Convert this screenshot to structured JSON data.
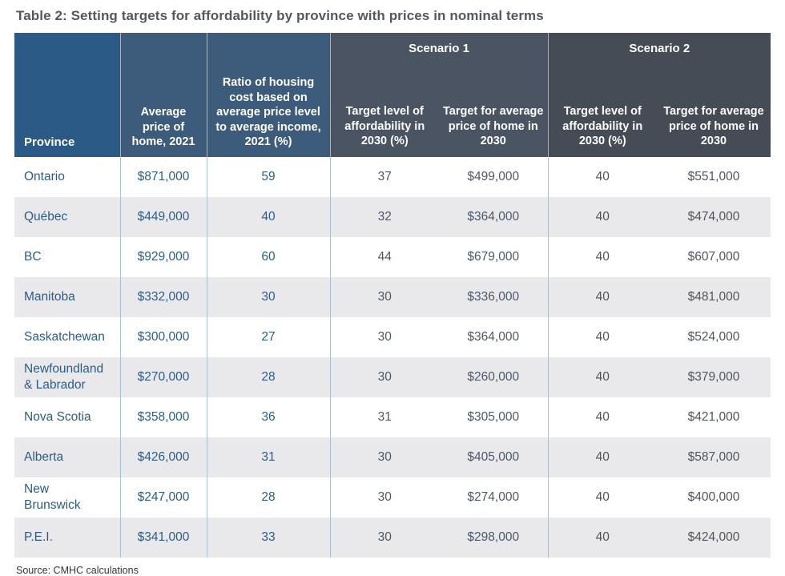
{
  "title": "Table 2: Setting targets for affordability by province with prices in nominal terms",
  "source": "Source: CMHC calculations",
  "colors": {
    "province_header_bg": "#2c5a86",
    "blue_headers_bg": "#3d5b7b",
    "scenario1_header_bg": "#4a5463",
    "scenario2_header_bg": "#464c55",
    "stripe_row_bg": "#e9e9eb",
    "blue_text": "#2d5c87",
    "scenario1_text": "#4d5868",
    "scenario2_text": "#50545d",
    "divider_blue": "#a6c0d5",
    "title_text": "#54575e"
  },
  "table": {
    "headers": {
      "province": "Province",
      "avg_price": "Average price of home, 2021",
      "ratio": "Ratio of housing cost based on average price level to average income, 2021 (%)",
      "scenario1": "Scenario 1",
      "scenario2": "Scenario 2",
      "target_level": "Target level of affordability in 2030 (%)",
      "target_price": "Target for average price of home in 2030"
    },
    "rows": [
      {
        "province": "Ontario",
        "avg_price": "$871,000",
        "ratio": "59",
        "s1_level": "37",
        "s1_price": "$499,000",
        "s2_level": "40",
        "s2_price": "$551,000"
      },
      {
        "province": "Québec",
        "avg_price": "$449,000",
        "ratio": "40",
        "s1_level": "32",
        "s1_price": "$364,000",
        "s2_level": "40",
        "s2_price": "$474,000"
      },
      {
        "province": "BC",
        "avg_price": "$929,000",
        "ratio": "60",
        "s1_level": "44",
        "s1_price": "$679,000",
        "s2_level": "40",
        "s2_price": "$607,000"
      },
      {
        "province": "Manitoba",
        "avg_price": "$332,000",
        "ratio": "30",
        "s1_level": "30",
        "s1_price": "$336,000",
        "s2_level": "40",
        "s2_price": "$481,000"
      },
      {
        "province": "Saskatchewan",
        "avg_price": "$300,000",
        "ratio": "27",
        "s1_level": "30",
        "s1_price": "$364,000",
        "s2_level": "40",
        "s2_price": "$524,000"
      },
      {
        "province": "Newfoundland\n& Labrador",
        "avg_price": "$270,000",
        "ratio": "28",
        "s1_level": "30",
        "s1_price": "$260,000",
        "s2_level": "40",
        "s2_price": "$379,000"
      },
      {
        "province": "Nova Scotia",
        "avg_price": "$358,000",
        "ratio": "36",
        "s1_level": "31",
        "s1_price": "$305,000",
        "s2_level": "40",
        "s2_price": "$421,000"
      },
      {
        "province": "Alberta",
        "avg_price": "$426,000",
        "ratio": "31",
        "s1_level": "30",
        "s1_price": "$405,000",
        "s2_level": "40",
        "s2_price": "$587,000"
      },
      {
        "province": "New\nBrunswick",
        "avg_price": "$247,000",
        "ratio": "28",
        "s1_level": "30",
        "s1_price": "$274,000",
        "s2_level": "40",
        "s2_price": "$400,000"
      },
      {
        "province": "P.E.I.",
        "avg_price": "$341,000",
        "ratio": "33",
        "s1_level": "30",
        "s1_price": "$298,000",
        "s2_level": "40",
        "s2_price": "$424,000"
      }
    ]
  }
}
